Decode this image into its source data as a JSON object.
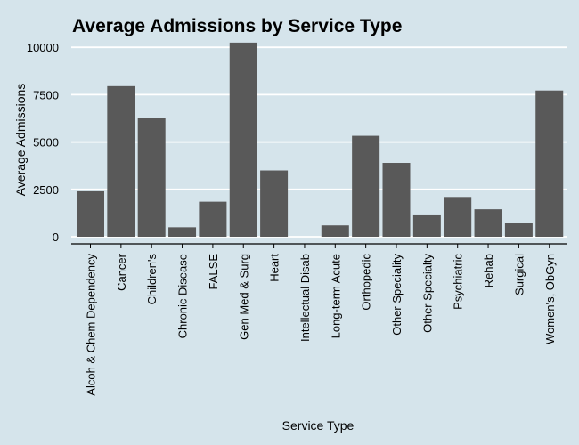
{
  "chart_data": {
    "type": "bar",
    "title": "Average Admissions by Service Type",
    "xlabel": "Service Type",
    "ylabel": "Average Admissions",
    "ylim": [
      0,
      10300
    ],
    "yticks": [
      0,
      2500,
      5000,
      7500,
      10000
    ],
    "ytick_labels": [
      "0",
      "2500",
      "5000",
      "7500",
      "10000"
    ],
    "categories": [
      "Alcoh & Chem Dependency",
      "Cancer",
      "Children's",
      "Chronic Disease",
      "FALSE",
      "Gen Med & Surg",
      "Heart",
      "Intellectual Disab",
      "Long-term Acute",
      "Orthopedic",
      "Other Speciality",
      "Other Specialty",
      "Psychiatric",
      "Rehab",
      "Surgical",
      "Women's, ObGyn"
    ],
    "values": [
      2400,
      7950,
      6250,
      500,
      1850,
      10250,
      3500,
      0,
      600,
      5330,
      3900,
      1130,
      2100,
      1450,
      750,
      7720
    ],
    "bar_color": "#595959",
    "background_color": "#d5e4eb",
    "grid": "horizontal major lines, white",
    "legend": "none"
  }
}
